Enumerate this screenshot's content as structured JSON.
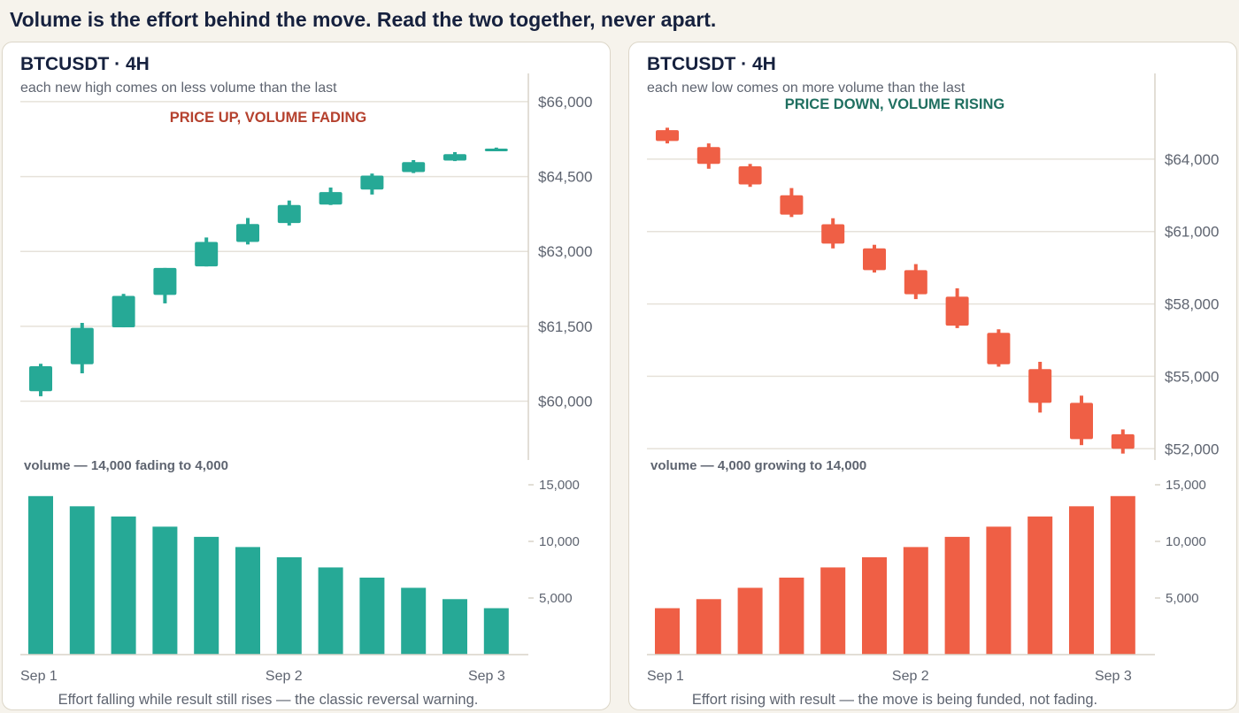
{
  "headline": "Volume is the effort behind the move. Read the two together, never apart.",
  "colors": {
    "up": "#26a996",
    "down": "#ef5f45",
    "grid": "#e6e2da",
    "axis": "#d8d3c8"
  },
  "panels": [
    {
      "title": "BTCUSDT · 4H",
      "subtitle": "each new high comes on less volume than the last",
      "callout": "PRICE UP, VOLUME FADING",
      "volume_label": "volume — 14,000 fading to 4,000",
      "footer": "Effort falling while result still rises — the classic reversal warning."
    },
    {
      "title": "BTCUSDT · 4H",
      "subtitle": "each new low comes on more volume than the last",
      "callout": "PRICE DOWN, VOLUME RISING",
      "volume_label": "volume — 4,000 growing to 14,000",
      "footer": "Effort rising with result — the move is being funded, not fading."
    }
  ],
  "chart_data": [
    {
      "type": "candlestick",
      "direction": "up",
      "price_axis": {
        "ylim": [
          59000,
          66300
        ],
        "ticks": [
          66000,
          64500,
          63000,
          61500,
          60000
        ],
        "tick_labels": [
          "$66,000",
          "$64,500",
          "$63,000",
          "$61,500",
          "$60,000"
        ]
      },
      "candles": [
        {
          "open": 60200,
          "high": 60750,
          "low": 60100,
          "close": 60700
        },
        {
          "open": 60740,
          "high": 61570,
          "low": 60560,
          "close": 61470
        },
        {
          "open": 61480,
          "high": 62150,
          "low": 61480,
          "close": 62110
        },
        {
          "open": 62130,
          "high": 62670,
          "low": 61960,
          "close": 62670
        },
        {
          "open": 62700,
          "high": 63280,
          "low": 62700,
          "close": 63190
        },
        {
          "open": 63190,
          "high": 63670,
          "low": 63140,
          "close": 63550
        },
        {
          "open": 63570,
          "high": 64020,
          "low": 63520,
          "close": 63930
        },
        {
          "open": 63940,
          "high": 64280,
          "low": 63930,
          "close": 64190
        },
        {
          "open": 64240,
          "high": 64560,
          "low": 64140,
          "close": 64520
        },
        {
          "open": 64590,
          "high": 64830,
          "low": 64570,
          "close": 64790
        },
        {
          "open": 64820,
          "high": 64990,
          "low": 64810,
          "close": 64950
        },
        {
          "open": 65010,
          "high": 65080,
          "low": 65010,
          "close": 65060
        }
      ],
      "volume_axis": {
        "ylim": [
          0,
          15000
        ],
        "ticks": [
          15000,
          10000,
          5000
        ],
        "tick_labels": [
          "15,000",
          "10,000",
          "5,000"
        ]
      },
      "volume": [
        14000,
        13100,
        12200,
        11300,
        10400,
        9500,
        8600,
        7700,
        6800,
        5900,
        4900,
        4100
      ],
      "x_tick_labels": [
        {
          "index": 0,
          "label": "Sep 1"
        },
        {
          "index": 6,
          "label": "Sep 2"
        },
        {
          "index": 11,
          "label": "Sep 3"
        }
      ]
    },
    {
      "type": "candlestick",
      "direction": "down",
      "price_axis": {
        "ylim": [
          51900,
          67000
        ],
        "ticks": [
          64000,
          61000,
          58000,
          55000,
          52000
        ],
        "tick_labels": [
          "$64,000",
          "$61,000",
          "$58,000",
          "$55,000",
          "$52,000"
        ]
      },
      "candles": [
        {
          "open": 65200,
          "high": 65300,
          "low": 64650,
          "close": 64750
        },
        {
          "open": 64500,
          "high": 64650,
          "low": 63600,
          "close": 63800
        },
        {
          "open": 63700,
          "high": 63800,
          "low": 62850,
          "close": 62950
        },
        {
          "open": 62500,
          "high": 62800,
          "low": 61600,
          "close": 61700
        },
        {
          "open": 61300,
          "high": 61550,
          "low": 60300,
          "close": 60500
        },
        {
          "open": 60300,
          "high": 60450,
          "low": 59300,
          "close": 59400
        },
        {
          "open": 59400,
          "high": 59650,
          "low": 58200,
          "close": 58400
        },
        {
          "open": 58300,
          "high": 58650,
          "low": 57000,
          "close": 57100
        },
        {
          "open": 56800,
          "high": 56950,
          "low": 55400,
          "close": 55500
        },
        {
          "open": 55300,
          "high": 55600,
          "low": 53500,
          "close": 53900
        },
        {
          "open": 53900,
          "high": 54200,
          "low": 52150,
          "close": 52400
        },
        {
          "open": 52600,
          "high": 52800,
          "low": 51800,
          "close": 52000
        }
      ],
      "volume_axis": {
        "ylim": [
          0,
          15000
        ],
        "ticks": [
          15000,
          10000,
          5000
        ],
        "tick_labels": [
          "15,000",
          "10,000",
          "5,000"
        ]
      },
      "volume": [
        4100,
        4900,
        5900,
        6800,
        7700,
        8600,
        9500,
        10400,
        11300,
        12200,
        13100,
        14000
      ],
      "x_tick_labels": [
        {
          "index": 0,
          "label": "Sep 1"
        },
        {
          "index": 6,
          "label": "Sep 2"
        },
        {
          "index": 11,
          "label": "Sep 3"
        }
      ]
    }
  ]
}
